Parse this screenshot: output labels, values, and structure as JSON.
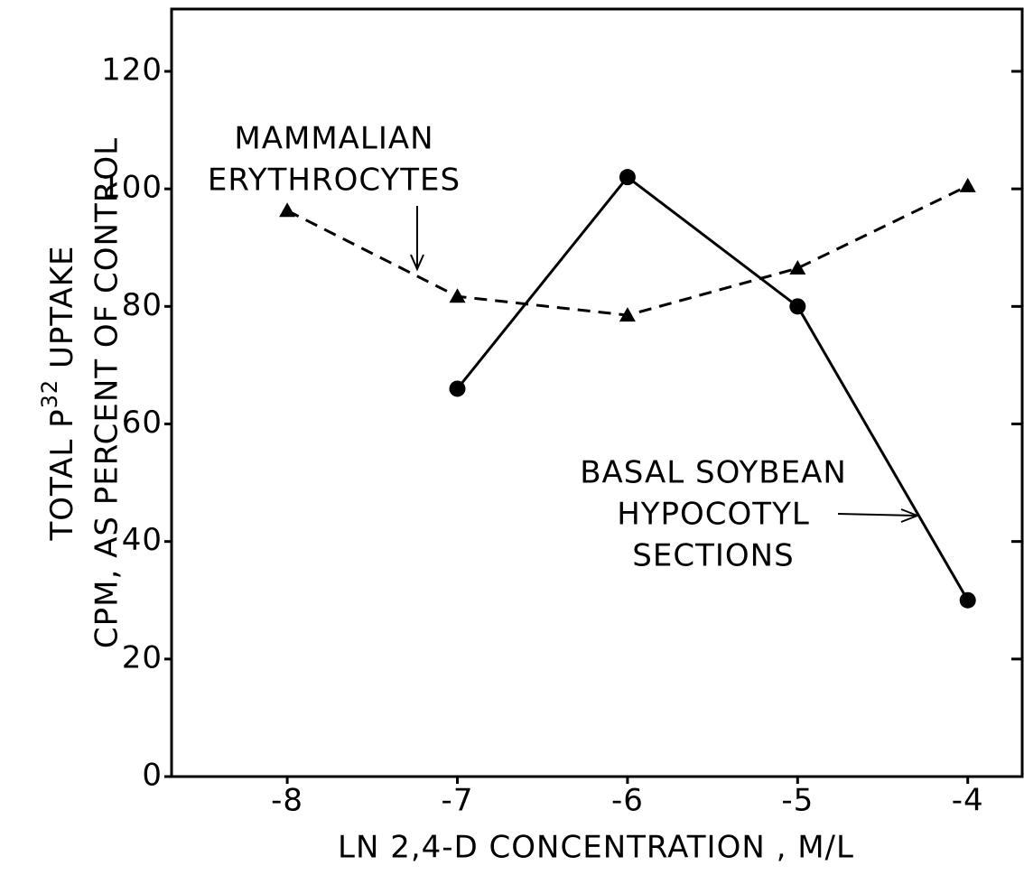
{
  "chart_data": {
    "type": "line",
    "x_label": "LN  2,4-D  CONCENTRATION , M/L",
    "y_label_parts": [
      "TOTAL  P",
      "32",
      " UPTAKE"
    ],
    "y_label_line2": "CPM, AS PERCENT OF CONTROL",
    "x": [
      -8,
      -7,
      -6,
      -5,
      -4
    ],
    "series": [
      {
        "color": "#000000",
        "dash": true,
        "marker": "triangle",
        "values": [
          96.3,
          81.7,
          78.5,
          86.5,
          100.5
        ]
      },
      {
        "color": "#000000",
        "dash": false,
        "marker": "circle",
        "values": [
          null,
          66,
          102,
          80,
          30
        ]
      }
    ],
    "annotations": [
      {
        "lines": [
          "MAMMALIAN",
          "ERYTHROCYTES"
        ]
      },
      {
        "lines": [
          "BASAL  SOYBEAN",
          "HYPOCOTYL",
          "SECTIONS"
        ]
      }
    ],
    "xlim": [
      -8.68,
      -3.68
    ],
    "xticks": [
      -8,
      -7,
      -6,
      -5,
      -4
    ],
    "ylim": [
      0,
      130.6
    ],
    "yticks": [
      0,
      20,
      40,
      60,
      80,
      100,
      120
    ]
  }
}
